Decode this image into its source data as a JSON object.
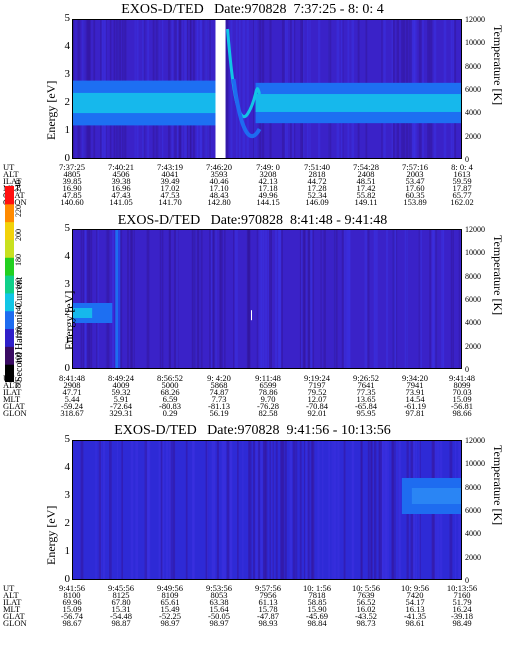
{
  "panels": [
    {
      "title": "EXOS-D/TED   Date:970828  7:37:25 - 8: 0: 4",
      "ylabel": "Energy [eV]",
      "ylabel_right": "Temperature [K]",
      "eph": {
        "labels": [
          "UT",
          "ALT",
          "ILAT",
          "MLT",
          "GLAT",
          "GLON"
        ],
        "columns": [
          [
            "7:37:25",
            "4805",
            "39.85",
            "16.90",
            "47.85",
            "140.60"
          ],
          [
            "7:40:21",
            "4506",
            "39.38",
            "16.96",
            "47.43",
            "141.05"
          ],
          [
            "7:43:19",
            "4041",
            "39.49",
            "17.02",
            "47.53",
            "141.70"
          ],
          [
            "7:46:20",
            "3593",
            "40.46",
            "17.10",
            "48.43",
            "142.80"
          ],
          [
            "7:49: 0",
            "3208",
            "42.13",
            "17.18",
            "49.96",
            "144.15"
          ],
          [
            "7:51:40",
            "2818",
            "44.72",
            "17.28",
            "52.34",
            "146.09"
          ],
          [
            "7:54:28",
            "2408",
            "48.51",
            "17.42",
            "55.82",
            "149.11"
          ],
          [
            "7:57:16",
            "2003",
            "53.47",
            "17.60",
            "60.35",
            "153.89"
          ],
          [
            "8: 0: 4",
            "1613",
            "59.59",
            "17.87",
            "65.77",
            "162.02"
          ]
        ]
      }
    },
    {
      "title": "EXOS-D/TED   Date:970828  8:41:48 - 9:41:48",
      "ylabel": "Energy [eV]",
      "ylabel_right": "Temperature [K]",
      "eph": {
        "labels": [
          "UT",
          "ALT",
          "ILAT",
          "MLT",
          "GLAT",
          "GLON"
        ],
        "columns": [
          [
            "8:41:48",
            "2908",
            "47.71",
            "5.44",
            "-59.24",
            "318.67"
          ],
          [
            "8:49:24",
            "4009",
            "59.32",
            "5.91",
            "-72.64",
            "329.31"
          ],
          [
            "8:56:52",
            "5000",
            "68.26",
            "6.59",
            "-80.83",
            "0.29"
          ],
          [
            "9: 4:20",
            "5868",
            "74.87",
            "7.73",
            "-81.13",
            "56.19"
          ],
          [
            "9:11:48",
            "6599",
            "78.86",
            "9.70",
            "-76.28",
            "82.58"
          ],
          [
            "9:19:24",
            "7197",
            "79.52",
            "12.07",
            "-70.84",
            "92.01"
          ],
          [
            "9:26:52",
            "7641",
            "77.35",
            "13.65",
            "-65.84",
            "95.95"
          ],
          [
            "9:34:20",
            "7941",
            "73.91",
            "14.54",
            "-61.19",
            "97.81"
          ],
          [
            "9:41:48",
            "8099",
            "70.03",
            "15.09",
            "-56.81",
            "98.66"
          ]
        ]
      }
    },
    {
      "title": "EXOS-D/TED   Date:970828  9:41:56 - 10:13:56",
      "ylabel": "Energy [eV]",
      "ylabel_right": "Temperature [K]",
      "eph": {
        "labels": [
          "UT",
          "ALT",
          "ILAT",
          "MLT",
          "GLAT",
          "GLON"
        ],
        "columns": [
          [
            "9:41:56",
            "8100",
            "69.96",
            "15.09",
            "-56.74",
            "98.67"
          ],
          [
            "9:45:56",
            "8125",
            "67.80",
            "15.31",
            "-54.48",
            "98.87"
          ],
          [
            "9:49:56",
            "8109",
            "65.61",
            "15.49",
            "-52.25",
            "98.97"
          ],
          [
            "9:53:56",
            "8053",
            "63.38",
            "15.64",
            "-50.05",
            "98.97"
          ],
          [
            "9:57:56",
            "7956",
            "61.13",
            "15.78",
            "-47.87",
            "98.93"
          ],
          [
            "10: 1:56",
            "7818",
            "58.85",
            "15.90",
            "-45.69",
            "98.84"
          ],
          [
            "10: 5:56",
            "7639",
            "56.52",
            "16.02",
            "-43.52",
            "98.73"
          ],
          [
            "10: 9:56",
            "7420",
            "54.17",
            "16.13",
            "-41.35",
            "98.61"
          ],
          [
            "10:13:56",
            "7160",
            "51.79",
            "16.24",
            "-39.18",
            "98.49"
          ]
        ]
      }
    }
  ],
  "colorbar": {
    "label": "Second Harmonic Current",
    "ticks": [
      "80",
      "100",
      "120",
      "140",
      "160",
      "180",
      "200",
      "220",
      "240"
    ],
    "colors": [
      "#000000",
      "#3a0b63",
      "#2f1fc9",
      "#1e6cf0",
      "#11c6e6",
      "#10d08a",
      "#22d020",
      "#c8e020",
      "#f2d20a",
      "#ff8a00",
      "#ff1010"
    ]
  },
  "chart_data": [
    {
      "type": "heatmap",
      "title": "EXOS-D/TED   Date:970828  7:37:25 - 8: 0: 4",
      "x": [
        "7:37:25",
        "7:40:21",
        "7:43:19",
        "7:46:20",
        "7:49: 0",
        "7:51:40",
        "7:54:28",
        "7:57:16",
        "8: 0: 4"
      ],
      "ylabel": "Energy [eV]",
      "ylim": [
        0,
        5
      ],
      "yticks": [
        0,
        1,
        2,
        3,
        4,
        5
      ],
      "y2label": "Temperature [K]",
      "y2lim": [
        0,
        12000
      ],
      "y2ticks": [
        0,
        2000,
        4000,
        6000,
        8000,
        10000,
        12000
      ],
      "band_center_ev": 2.0,
      "band_halfwidth_ev": 0.8,
      "data_gap": [
        "7:45:45",
        "7:46:20"
      ]
    },
    {
      "type": "heatmap",
      "title": "EXOS-D/TED   Date:970828  8:41:48 - 9:41:48",
      "x": [
        "8:41:48",
        "8:49:24",
        "8:56:52",
        "9: 4:20",
        "9:11:48",
        "9:19:24",
        "9:26:52",
        "9:34:20",
        "9:41:48"
      ],
      "ylabel": "Energy [eV]",
      "ylim": [
        0,
        5
      ],
      "yticks": [
        0,
        1,
        2,
        3,
        4,
        5
      ],
      "y2label": "Temperature [K]",
      "y2lim": [
        0,
        12000
      ],
      "y2ticks": [
        0,
        2000,
        4000,
        6000,
        8000,
        10000,
        12000
      ],
      "band_center_ev": 2.0,
      "band_end": "8:48:00"
    },
    {
      "type": "heatmap",
      "title": "EXOS-D/TED   Date:970828  9:41:56 - 10:13:56",
      "x": [
        "9:41:56",
        "9:45:56",
        "9:49:56",
        "9:53:56",
        "9:57:56",
        "10: 1:56",
        "10: 5:56",
        "10: 9:56",
        "10:13:56"
      ],
      "ylabel": "Energy [eV]",
      "ylim": [
        0,
        5
      ],
      "yticks": [
        0,
        1,
        2,
        3,
        4,
        5
      ],
      "y2label": "Temperature [K]",
      "y2lim": [
        0,
        12000
      ],
      "y2ticks": [
        0,
        2000,
        4000,
        6000,
        8000,
        10000,
        12000
      ],
      "band_center_ev": 3.0,
      "band_start": "10: 9:00"
    }
  ]
}
